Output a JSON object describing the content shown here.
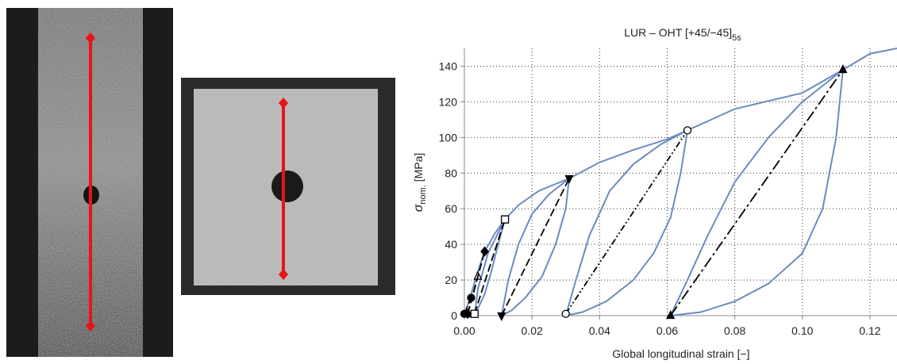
{
  "chart_data": {
    "type": "line",
    "title": {
      "text": "LUR – OHT  [+45/−45]",
      "subscript": "5s"
    },
    "x_label": "Global longitudinal strain [−]",
    "y_label": {
      "symbol": "σ",
      "subscript": "nom.",
      "unit": " [MPa]"
    },
    "xlim": [
      0,
      0.128
    ],
    "xticks": [
      {
        "value": 0,
        "label": "0.00"
      },
      0.02,
      0.04,
      0.06,
      0.08,
      {
        "value": 0.1,
        "label": "0.10"
      },
      0.12
    ],
    "ylim": [
      0,
      150
    ],
    "yticks": [
      0,
      20,
      40,
      60,
      80,
      100,
      120,
      140
    ],
    "grid": true,
    "series": [
      {
        "color": "#6b8cbf",
        "x": [
          0,
          0.002,
          0.004,
          0.006,
          0.009,
          0.012,
          0.016,
          0.022,
          0.031,
          0.04,
          0.05,
          0.06,
          0.066,
          0.08,
          0.1,
          0.112,
          0.12,
          0.128
        ],
        "values": [
          0,
          12,
          25,
          36,
          46,
          54,
          62,
          70,
          77,
          86,
          93,
          99,
          104,
          116,
          125,
          138,
          147,
          150
        ]
      },
      {
        "color": "#6b8cbf",
        "x": [
          0.012,
          0.01,
          0.008,
          0.006,
          0.003,
          0.004,
          0.007,
          0.012
        ],
        "values": [
          54,
          40,
          25,
          12,
          0,
          15,
          35,
          54
        ]
      },
      {
        "color": "#6b8cbf",
        "x": [
          0.031,
          0.03,
          0.027,
          0.023,
          0.018,
          0.014,
          0.011,
          0.013,
          0.016,
          0.02,
          0.025,
          0.031
        ],
        "values": [
          77,
          60,
          40,
          22,
          10,
          3,
          0,
          20,
          40,
          57,
          68,
          77
        ]
      },
      {
        "color": "#6b8cbf",
        "x": [
          0.066,
          0.064,
          0.061,
          0.056,
          0.05,
          0.042,
          0.035,
          0.03,
          0.033,
          0.037,
          0.043,
          0.05,
          0.058,
          0.066
        ],
        "values": [
          104,
          80,
          55,
          35,
          20,
          8,
          2,
          0,
          20,
          45,
          70,
          85,
          96,
          104
        ]
      },
      {
        "color": "#6b8cbf",
        "x": [
          0.112,
          0.11,
          0.106,
          0.1,
          0.09,
          0.08,
          0.07,
          0.061,
          0.066,
          0.072,
          0.08,
          0.09,
          0.1,
          0.112
        ],
        "values": [
          138,
          100,
          60,
          35,
          18,
          8,
          2,
          0,
          20,
          45,
          75,
          100,
          120,
          138
        ]
      },
      {
        "color": "#000000",
        "dash": "dashed",
        "marker": "circle",
        "x": [
          0,
          0.002
        ],
        "values": [
          1,
          10
        ]
      },
      {
        "color": "#000000",
        "dash": "dashed",
        "marker": "triangle-open",
        "x": [
          0.001,
          0.004
        ],
        "values": [
          1,
          22
        ]
      },
      {
        "color": "#000000",
        "dash": "dashed",
        "marker": "diamond",
        "x": [
          0.001,
          0.006
        ],
        "values": [
          1,
          36
        ]
      },
      {
        "color": "#000000",
        "dash": "dashed",
        "marker": "square-open",
        "x": [
          0.003,
          0.012
        ],
        "values": [
          1,
          54
        ]
      },
      {
        "color": "#000000",
        "dash": "dashed",
        "marker": "triangle-down",
        "x": [
          0.011,
          0.031
        ],
        "values": [
          0,
          77
        ]
      },
      {
        "color": "#000000",
        "dash": "dashdotdot",
        "marker": "circle-open",
        "x": [
          0.03,
          0.066
        ],
        "values": [
          1,
          104
        ]
      },
      {
        "color": "#000000",
        "dash": "longdash",
        "marker": "triangle-up",
        "x": [
          0.061,
          0.112
        ],
        "values": [
          0,
          138
        ]
      }
    ]
  }
}
